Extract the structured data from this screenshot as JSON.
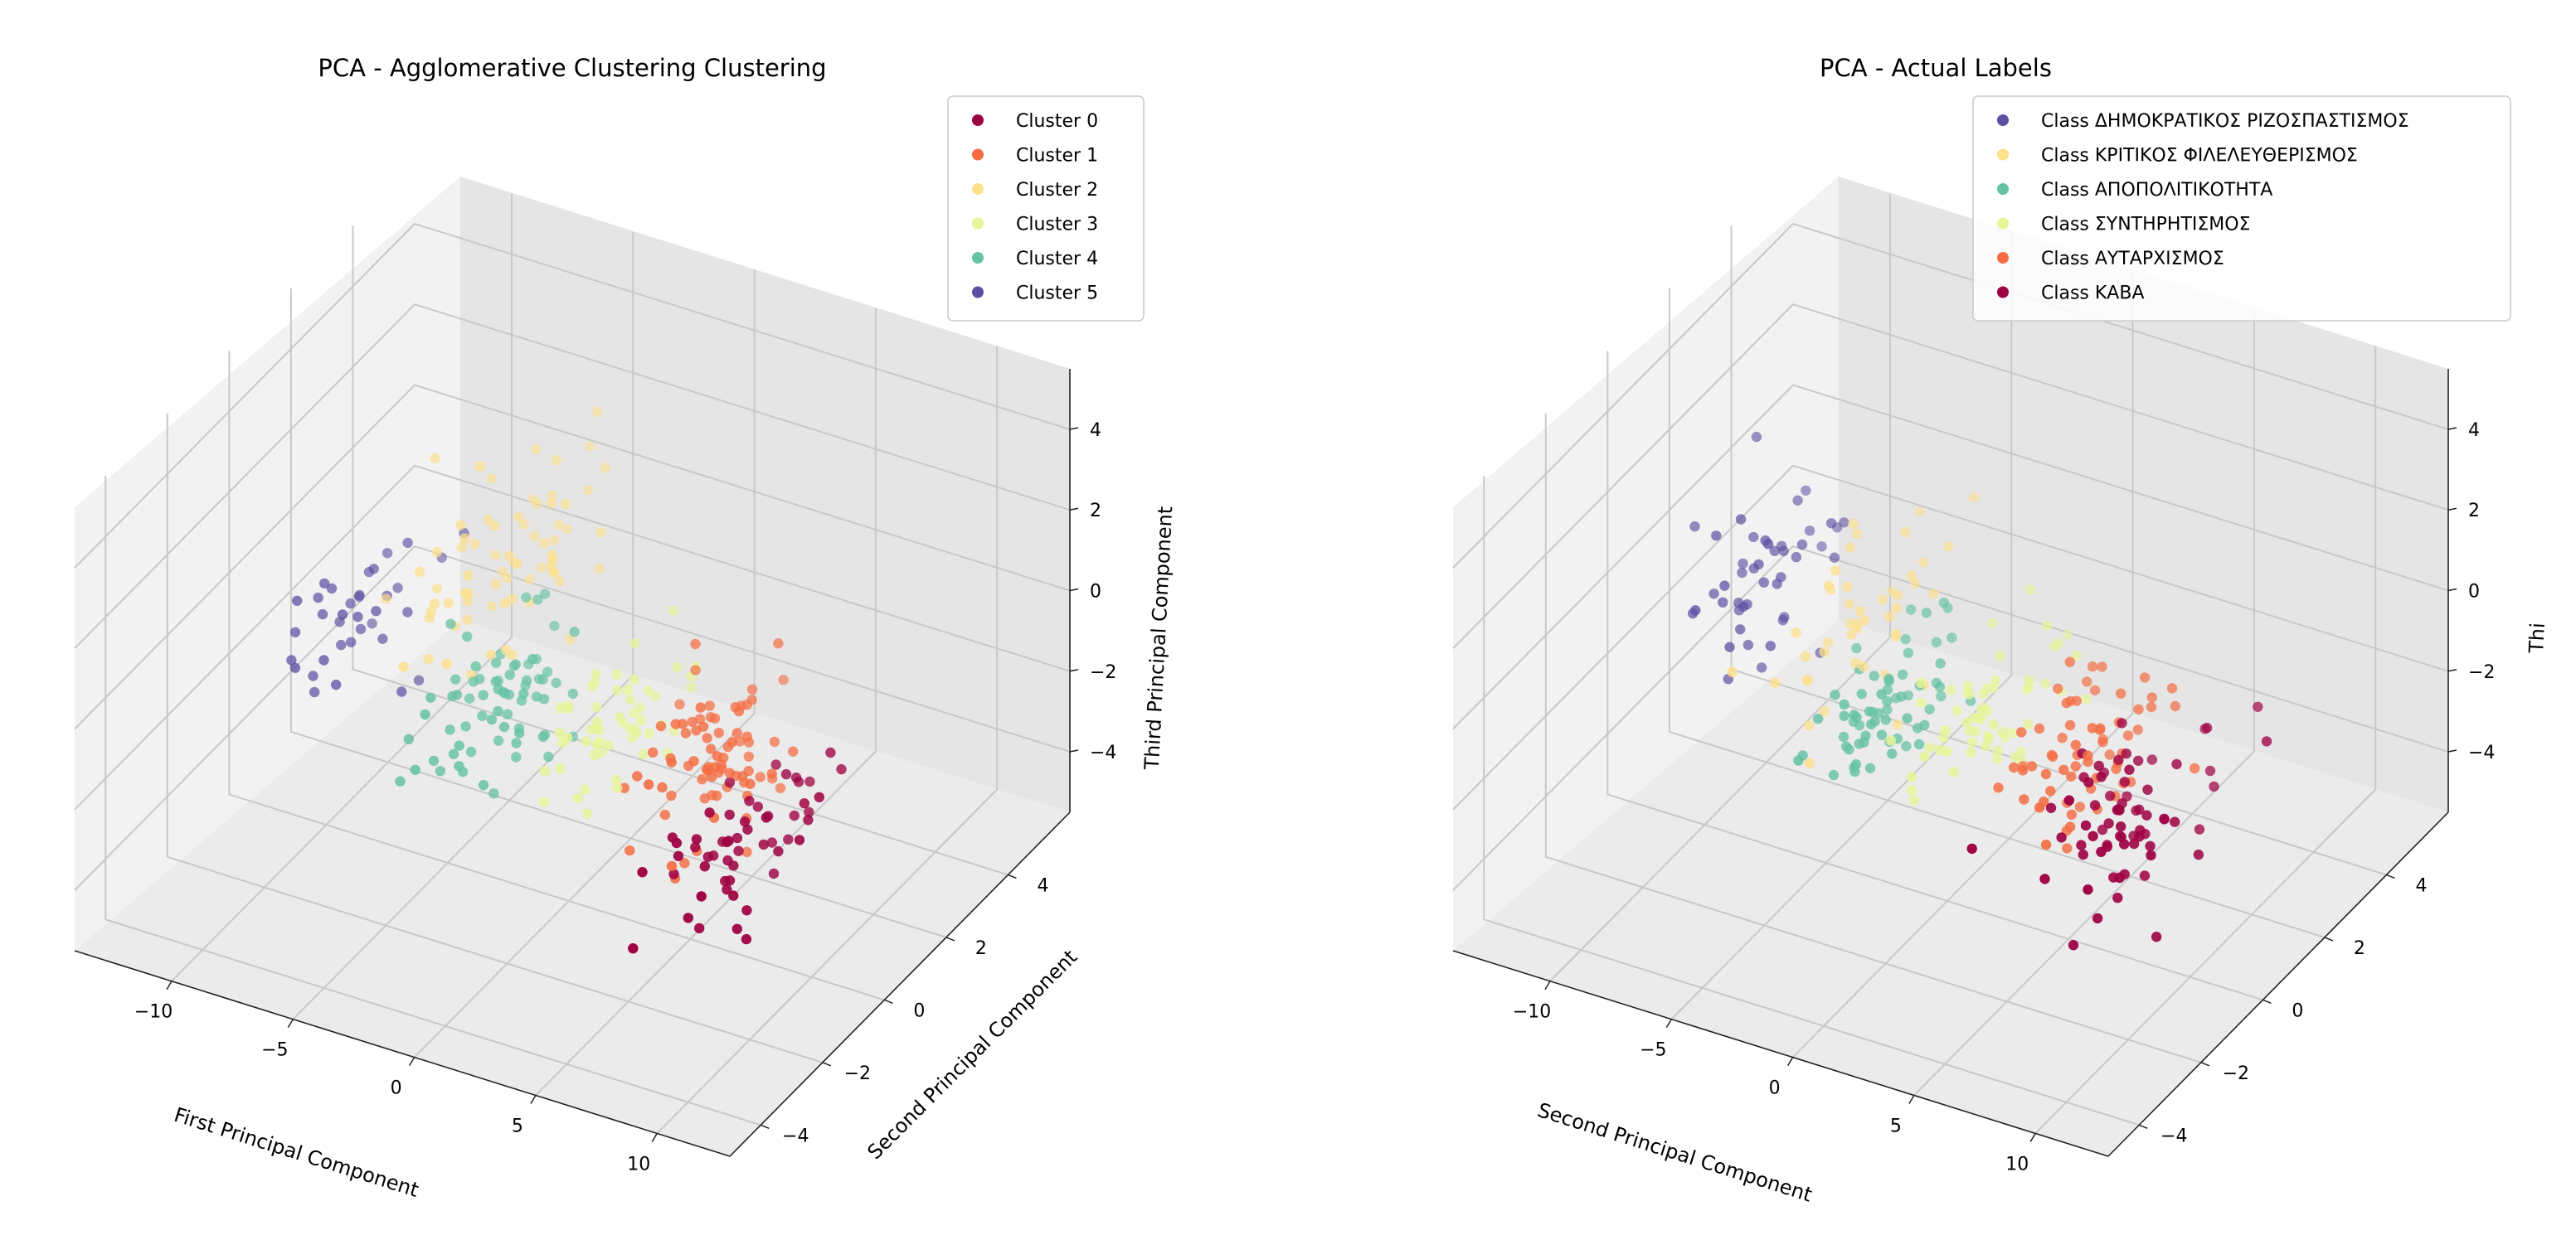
{
  "palette": {
    "c0": "#9e0142",
    "c1": "#f46d43",
    "c2": "#fee08b",
    "c3": "#e6f598",
    "c4": "#66c2a5",
    "c5": "#5e4fa2",
    "pane_light": "#f2f2f2",
    "pane_mid": "#ebebeb",
    "pane_dark": "#e5e5e5"
  },
  "chart_data": [
    {
      "type": "scatter",
      "projection": "3d",
      "title": "PCA - Agglomerative Clustering Clustering",
      "xlabel": "First Principal Component",
      "ylabel": "Second Principal Component",
      "zlabel": "Third Principal Component",
      "xlim": [
        -14,
        13
      ],
      "ylim": [
        -5,
        6
      ],
      "zlim": [
        -5.5,
        5.5
      ],
      "x_ticks": [
        "−10",
        "−5",
        "0",
        "5",
        "10"
      ],
      "y_ticks": [
        "−4",
        "−2",
        "0",
        "2",
        "4"
      ],
      "z_ticks": [
        "−4",
        "−2",
        "0",
        "2",
        "4"
      ],
      "grid": true,
      "legend_position": "top-right",
      "legend": [
        {
          "label": "Cluster 0",
          "color": "#9e0142"
        },
        {
          "label": "Cluster 1",
          "color": "#f46d43"
        },
        {
          "label": "Cluster 2",
          "color": "#fee08b"
        },
        {
          "label": "Cluster 3",
          "color": "#e6f598"
        },
        {
          "label": "Cluster 4",
          "color": "#66c2a5"
        },
        {
          "label": "Cluster 5",
          "color": "#5e4fa2"
        }
      ],
      "series": [
        {
          "name": "Cluster 5",
          "color": "#5e4fa2",
          "center": [
            -9.5,
            0.5,
            -0.5
          ],
          "spread": [
            1.6,
            1.8,
            1.6
          ],
          "count": 35,
          "seed": 11
        },
        {
          "name": "Cluster 2",
          "color": "#fee08b",
          "center": [
            -5.0,
            1.5,
            0.8
          ],
          "spread": [
            2.6,
            2.0,
            1.9
          ],
          "count": 70,
          "seed": 23
        },
        {
          "name": "Cluster 4",
          "color": "#66c2a5",
          "center": [
            -2.5,
            0.0,
            -1.2
          ],
          "spread": [
            2.0,
            1.8,
            1.4
          ],
          "count": 70,
          "seed": 37
        },
        {
          "name": "Cluster 3",
          "color": "#e6f598",
          "center": [
            1.5,
            0.5,
            -1.0
          ],
          "spread": [
            1.6,
            1.7,
            1.3
          ],
          "count": 55,
          "seed": 41
        },
        {
          "name": "Cluster 1",
          "color": "#f46d43",
          "center": [
            5.5,
            0.5,
            -1.2
          ],
          "spread": [
            2.4,
            2.0,
            1.5
          ],
          "count": 80,
          "seed": 53
        },
        {
          "name": "Cluster 0",
          "color": "#9e0142",
          "center": [
            8.0,
            -1.0,
            -2.0
          ],
          "spread": [
            2.0,
            2.0,
            1.4
          ],
          "count": 55,
          "seed": 67
        }
      ]
    },
    {
      "type": "scatter",
      "projection": "3d",
      "title": "PCA - Actual Labels",
      "xlabel": "Second Principal Component",
      "ylabel": "",
      "zlabel": "Thi",
      "xlim": [
        -14,
        13
      ],
      "ylim": [
        -5,
        6
      ],
      "zlim": [
        -5.5,
        5.5
      ],
      "x_ticks": [
        "−10",
        "−5",
        "0",
        "5",
        "10"
      ],
      "y_ticks": [
        "−4",
        "−2",
        "0",
        "2",
        "4"
      ],
      "z_ticks": [
        "−4",
        "−2",
        "0",
        "2",
        "4"
      ],
      "grid": true,
      "legend_position": "top-right",
      "legend": [
        {
          "label": "Class ΔΗΜΟΚΡΑΤΙΚΟΣ ΡΙΖΟΣΠΑΣΤΙΣΜΟΣ",
          "color": "#5e4fa2"
        },
        {
          "label": "Class ΚΡΙΤΙΚΟΣ ΦΙΛΕΛΕΥΘΕΡΙΣΜΟΣ",
          "color": "#fee08b"
        },
        {
          "label": "Class ΑΠΟΠΟΛΙΤΙΚΟΤΗΤΑ",
          "color": "#66c2a5"
        },
        {
          "label": "Class ΣΥΝΤΗΡΗΤΙΣΜΟΣ",
          "color": "#e6f598"
        },
        {
          "label": "Class ΑΥΤΑΡΧΙΣΜΟΣ",
          "color": "#f46d43"
        },
        {
          "label": "Class ΚΑΒΑ",
          "color": "#9e0142"
        }
      ],
      "series": [
        {
          "name": "Class ΔΗΜΟΚΡΑΤΙΚΟΣ ΡΙΖΟΣΠΑΣΤΙΣΜΟΣ",
          "color": "#5e4fa2",
          "center": [
            -9.0,
            1.0,
            0.0
          ],
          "spread": [
            2.0,
            2.0,
            1.8
          ],
          "count": 45,
          "seed": 111
        },
        {
          "name": "Class ΚΡΙΤΙΚΟΣ ΦΙΛΕΛΕΥΘΕΡΙΣΜΟΣ",
          "color": "#fee08b",
          "center": [
            -5.0,
            1.0,
            -0.5
          ],
          "spread": [
            2.2,
            1.8,
            1.5
          ],
          "count": 45,
          "seed": 123
        },
        {
          "name": "Class ΑΠΟΠΟΛΙΤΙΚΟΤΗΤΑ",
          "color": "#66c2a5",
          "center": [
            -2.5,
            0.0,
            -1.0
          ],
          "spread": [
            1.8,
            1.7,
            1.3
          ],
          "count": 65,
          "seed": 137
        },
        {
          "name": "Class ΣΥΝΤΗΡΗΤΙΣΜΟΣ",
          "color": "#e6f598",
          "center": [
            1.0,
            0.5,
            -1.0
          ],
          "spread": [
            1.8,
            1.8,
            1.4
          ],
          "count": 60,
          "seed": 141
        },
        {
          "name": "Class ΑΥΤΑΡΧΙΣΜΟΣ",
          "color": "#f46d43",
          "center": [
            5.0,
            0.5,
            -1.2
          ],
          "spread": [
            2.2,
            2.0,
            1.5
          ],
          "count": 65,
          "seed": 153
        },
        {
          "name": "Class ΚΑΒΑ",
          "color": "#9e0142",
          "center": [
            8.0,
            -0.5,
            -1.6
          ],
          "spread": [
            2.2,
            2.2,
            1.6
          ],
          "count": 70,
          "seed": 167
        }
      ]
    }
  ]
}
